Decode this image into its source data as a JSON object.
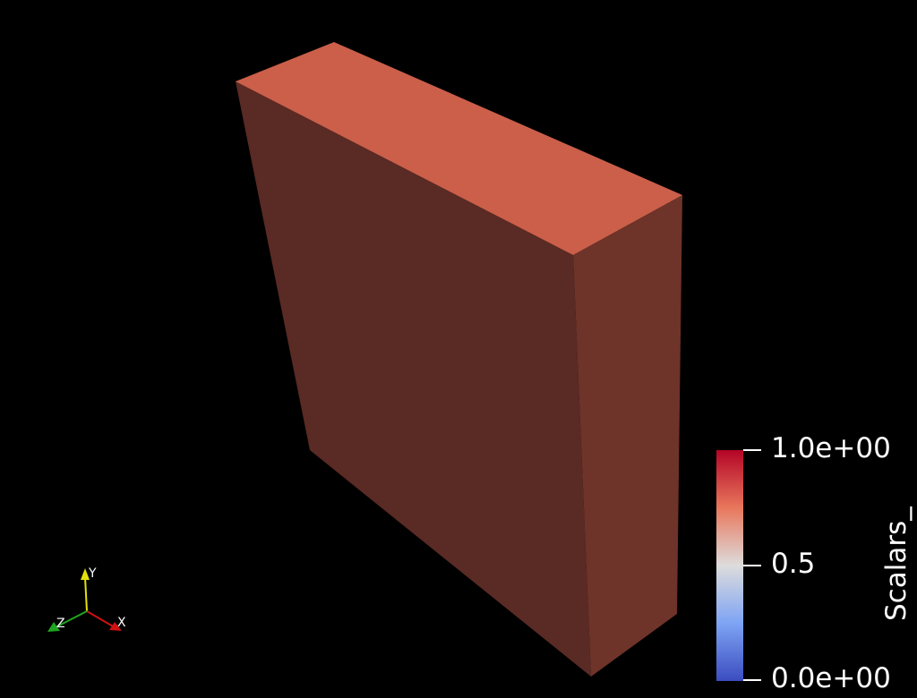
{
  "render": {
    "background": "#000000",
    "object": {
      "shape": "box",
      "colors": {
        "top_face": "#cb5f4a",
        "front_face": "#5a2a24",
        "side_face": "#6e3329",
        "edge": "#7a3b30"
      }
    }
  },
  "colorbar": {
    "title": "Scalars_",
    "colormap": "coolwarm",
    "range": [
      0.0,
      1.0
    ],
    "ticks": [
      {
        "value": 1.0,
        "label": "1.0e+00"
      },
      {
        "value": 0.5,
        "label": "0.5"
      },
      {
        "value": 0.0,
        "label": "0.0e+00"
      }
    ],
    "gradient_colors": {
      "top": "#b40426",
      "upper": "#e8775c",
      "middle": "#dddcdc",
      "lower": "#7ea4f4",
      "bottom": "#3b4cc0"
    }
  },
  "axes_widget": {
    "x": {
      "label": "X",
      "color": "#d11010"
    },
    "y": {
      "label": "Y",
      "color": "#e2e20a"
    },
    "z": {
      "label": "Z",
      "color": "#1fa51f"
    }
  }
}
